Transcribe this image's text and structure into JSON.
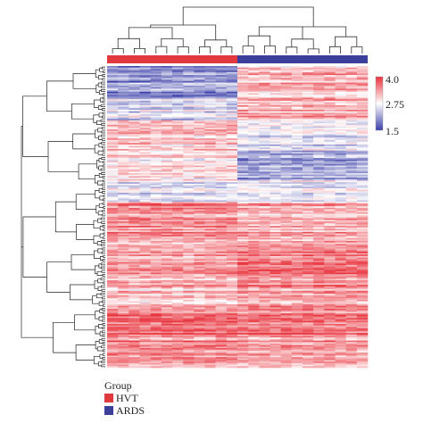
{
  "chart_data": {
    "type": "heatmap",
    "title": "",
    "groups_legend_title": "Group",
    "groups": [
      {
        "name": "HVT",
        "color": "#e03a3e",
        "columns": 12
      },
      {
        "name": "ARDS",
        "color": "#3b3f9a",
        "columns": 12
      }
    ],
    "color_scale": {
      "min": 1.5,
      "mid": 2.75,
      "max": 4.0,
      "tick_labels": [
        "4.0",
        "2.75",
        "1.5"
      ],
      "low_color": "#3b3fa8",
      "mid_color": "#ffffff",
      "high_color": "#e8323c"
    },
    "row_blocks": [
      {
        "rows": 22,
        "HVT": 2.05,
        "ARDS": 3.15
      },
      {
        "rows": 14,
        "HVT": 2.55,
        "ARDS": 3.25
      },
      {
        "rows": 20,
        "HVT": 3.05,
        "ARDS": 2.55
      },
      {
        "rows": 20,
        "HVT": 2.9,
        "ARDS": 2.15
      },
      {
        "rows": 14,
        "HVT": 2.55,
        "ARDS": 2.6
      },
      {
        "rows": 26,
        "HVT": 3.45,
        "ARDS": 3.25
      },
      {
        "rows": 22,
        "HVT": 3.3,
        "ARDS": 3.55
      },
      {
        "rows": 24,
        "HVT": 3.15,
        "ARDS": 3.35
      },
      {
        "rows": 18,
        "HVT": 3.7,
        "ARDS": 3.6
      },
      {
        "rows": 20,
        "HVT": 3.45,
        "ARDS": 3.35
      }
    ]
  }
}
